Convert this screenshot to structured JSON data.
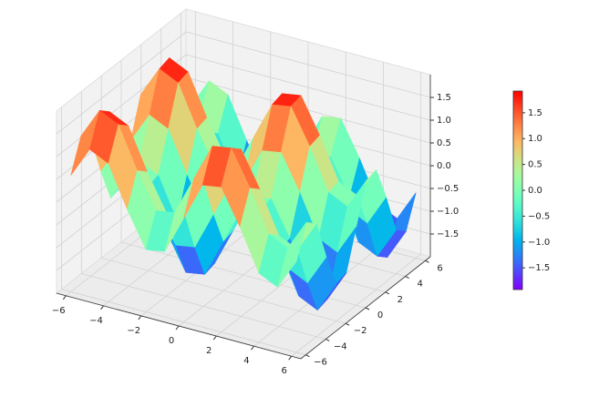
{
  "chart_data": {
    "type": "surface",
    "colormap": "rainbow",
    "x": [
      -6,
      -5,
      -4,
      -3,
      -2,
      -1,
      0,
      1,
      2,
      3,
      4,
      5,
      6
    ],
    "y": [
      -6,
      -5,
      -4,
      -3,
      -2,
      -1,
      0,
      1,
      2,
      3,
      4,
      5,
      6
    ],
    "z": [
      [
        0.56,
        1.24,
        1.04,
        0.14,
        -0.63,
        -0.56,
        0.28,
        1.12,
        1.19,
        0.42,
        -0.48,
        -0.68,
        0.0
      ],
      [
        1.24,
        1.92,
        1.72,
        0.82,
        0.05,
        0.12,
        0.96,
        1.8,
        1.87,
        1.1,
        0.2,
        0.0,
        0.68
      ],
      [
        1.04,
        1.72,
        1.52,
        0.62,
        -0.15,
        -0.08,
        0.76,
        1.6,
        1.67,
        0.9,
        0.0,
        -0.2,
        0.48
      ],
      [
        0.14,
        0.82,
        0.62,
        -0.28,
        -1.05,
        -0.98,
        -0.14,
        0.7,
        0.77,
        0.0,
        -0.9,
        -1.1,
        -0.42
      ],
      [
        -0.63,
        0.05,
        -0.15,
        -1.05,
        -1.82,
        -1.75,
        -0.91,
        -0.07,
        0.0,
        -0.77,
        -1.67,
        -1.87,
        -1.19
      ],
      [
        -0.56,
        0.12,
        -0.08,
        -0.98,
        -1.75,
        -1.68,
        -0.84,
        0.0,
        0.07,
        -0.7,
        -1.6,
        -1.8,
        -1.12
      ],
      [
        0.28,
        0.96,
        0.76,
        -0.14,
        -0.91,
        -0.84,
        0,
        0.84,
        0.91,
        0.14,
        -0.76,
        -0.96,
        -0.28
      ],
      [
        1.12,
        1.8,
        1.6,
        0.7,
        -0.07,
        0.0,
        0.84,
        1.68,
        1.75,
        0.98,
        0.08,
        -0.12,
        0.56
      ],
      [
        1.19,
        1.87,
        1.67,
        0.77,
        0.0,
        0.07,
        0.91,
        1.75,
        1.82,
        1.05,
        0.15,
        -0.05,
        0.63
      ],
      [
        0.42,
        1.1,
        0.9,
        0.0,
        -0.77,
        -0.7,
        0.14,
        0.98,
        1.05,
        0.28,
        -0.62,
        -0.82,
        -0.14
      ],
      [
        -0.48,
        0.2,
        0.0,
        -0.9,
        -1.67,
        -1.6,
        -0.76,
        0.08,
        0.15,
        -0.62,
        -1.52,
        -1.72,
        -1.04
      ],
      [
        -0.68,
        0.0,
        -0.2,
        -1.1,
        -1.87,
        -1.8,
        -0.96,
        -0.12,
        -0.05,
        -0.82,
        -1.72,
        -1.92,
        -1.24
      ],
      [
        0.0,
        0.68,
        0.48,
        -0.42,
        -1.19,
        -1.12,
        -0.28,
        0.56,
        0.63,
        -0.14,
        -1.04,
        -1.24,
        -0.56
      ]
    ],
    "xlim": [
      -6.5,
      6.5
    ],
    "ylim": [
      -6.5,
      6.5
    ],
    "zlim": [
      -2,
      2
    ],
    "xticks": [
      {
        "value": -6,
        "label": "−6"
      },
      {
        "value": -4,
        "label": "−4"
      },
      {
        "value": -2,
        "label": "−2"
      },
      0,
      2,
      4,
      6
    ],
    "yticks": [
      {
        "value": -6,
        "label": "−6"
      },
      {
        "value": -4,
        "label": "−4"
      },
      {
        "value": -2,
        "label": "−2"
      },
      0,
      2,
      4,
      6
    ],
    "zticks": [
      {
        "value": -1.5,
        "label": "−1.5"
      },
      {
        "value": -1,
        "label": "−1.0"
      },
      {
        "value": -0.5,
        "label": "−0.5"
      },
      {
        "value": 0,
        "label": "0.0"
      },
      0.5,
      {
        "value": 1,
        "label": "1.0"
      },
      1.5
    ],
    "grid": true,
    "colorbar": {
      "lim": [
        -1.92,
        1.92
      ],
      "ticks": [
        {
          "value": -1.5,
          "label": "−1.5"
        },
        {
          "value": -1,
          "label": "−1.0"
        },
        {
          "value": -0.5,
          "label": "−0.5"
        },
        {
          "value": 0,
          "label": "0.0"
        },
        0.5,
        {
          "value": 1,
          "label": "1.0"
        },
        1.5
      ]
    }
  }
}
